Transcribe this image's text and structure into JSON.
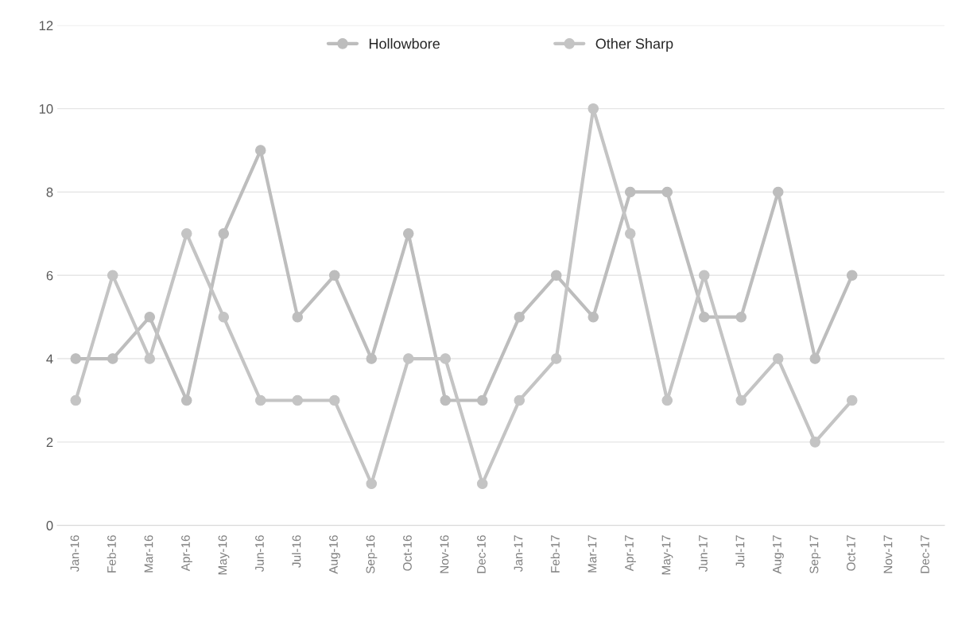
{
  "chart_data": {
    "type": "line",
    "categories": [
      "Jan-16",
      "Feb-16",
      "Mar-16",
      "Apr-16",
      "May-16",
      "Jun-16",
      "Jul-16",
      "Aug-16",
      "Sep-16",
      "Oct-16",
      "Nov-16",
      "Dec-16",
      "Jan-17",
      "Feb-17",
      "Mar-17",
      "Apr-17",
      "May-17",
      "Jun-17",
      "Jul-17",
      "Aug-17",
      "Sep-17",
      "Oct-17",
      "Nov-17",
      "Dec-17"
    ],
    "series": [
      {
        "name": "Hollowbore",
        "color": "#bdbdbd",
        "values": [
          4,
          4,
          5,
          3,
          7,
          9,
          5,
          6,
          4,
          7,
          3,
          3,
          5,
          6,
          5,
          8,
          8,
          5,
          5,
          8,
          4,
          6,
          null,
          null
        ]
      },
      {
        "name": "Other Sharp",
        "color": "#c4c4c4",
        "values": [
          3,
          6,
          4,
          7,
          5,
          3,
          3,
          3,
          1,
          4,
          4,
          1,
          3,
          4,
          10,
          7,
          3,
          6,
          3,
          4,
          2,
          3,
          null,
          null
        ]
      }
    ],
    "ylim": [
      0,
      12
    ],
    "yticks": [
      0,
      2,
      4,
      6,
      8,
      10,
      12
    ],
    "grid": "y",
    "legend": "top",
    "marker": "circle",
    "line_style": "solid"
  }
}
